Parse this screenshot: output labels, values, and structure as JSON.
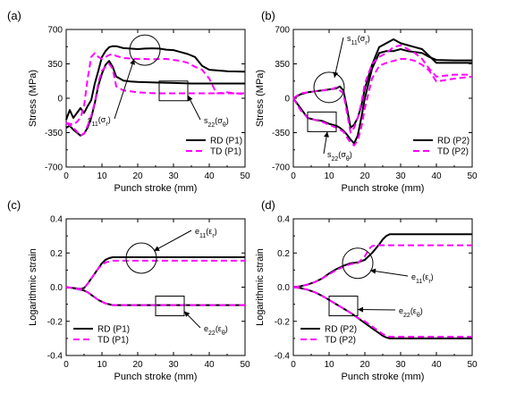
{
  "chart_data": [
    {
      "panel_label": "(a)",
      "type": "line",
      "xlabel": "Punch stroke (mm)",
      "ylabel": "Stress (MPa)",
      "xlim": [
        0,
        50
      ],
      "ylim": [
        -700,
        700
      ],
      "xticks": [
        "0",
        "10",
        "20",
        "30",
        "40",
        "50"
      ],
      "yticks": [
        "-700",
        "-350",
        "0",
        "350",
        "700"
      ],
      "legend_position": "bottom-right",
      "colors": {
        "RD": "#000000",
        "TD": "#ff00ff"
      },
      "annotations": [
        {
          "text": "s",
          "sub": "11",
          "tail": "(σ",
          "tsub": "r",
          "close": ")",
          "shape": "circle",
          "at": [
            22,
            490
          ]
        },
        {
          "text": "s",
          "sub": "22",
          "tail": "(σ",
          "tsub": "θ",
          "close": ")",
          "shape": "box",
          "at": [
            30,
            75
          ]
        }
      ],
      "series": [
        {
          "name": "RD (P1)",
          "style": "solid",
          "x": [
            0,
            1,
            2,
            3,
            4,
            5,
            6,
            7,
            8,
            9,
            10,
            11,
            12,
            13,
            14,
            16,
            18,
            20,
            22,
            24,
            26,
            28,
            30,
            32,
            34,
            36,
            38,
            40,
            45,
            50
          ],
          "y": [
            -220,
            -120,
            -200,
            -150,
            -100,
            -150,
            -80,
            -20,
            150,
            280,
            420,
            480,
            520,
            530,
            530,
            510,
            505,
            500,
            505,
            508,
            505,
            495,
            490,
            470,
            450,
            420,
            330,
            290,
            275,
            270
          ]
        },
        {
          "name": "RD (P1)",
          "style": "solid",
          "x": [
            0,
            1,
            2,
            3,
            4,
            5,
            6,
            7,
            8,
            9,
            10,
            11,
            12,
            13,
            14,
            16,
            18,
            20,
            25,
            30,
            35,
            40,
            45,
            50
          ],
          "y": [
            -300,
            -280,
            -320,
            -350,
            -380,
            -360,
            -300,
            -200,
            -50,
            130,
            250,
            340,
            380,
            320,
            220,
            180,
            170,
            165,
            160,
            155,
            150,
            150,
            150,
            150
          ]
        },
        {
          "name": "TD (P1)",
          "style": "dashed",
          "x": [
            0,
            1,
            2,
            3,
            4,
            5,
            6,
            7,
            8,
            9,
            10,
            11,
            12,
            13,
            14,
            16,
            18,
            20,
            22,
            24,
            26,
            28,
            30,
            32,
            34,
            36,
            38,
            40,
            42,
            45,
            50
          ],
          "y": [
            -250,
            -260,
            -270,
            -240,
            -200,
            -80,
            200,
            420,
            460,
            420,
            400,
            420,
            440,
            450,
            430,
            410,
            405,
            400,
            400,
            395,
            400,
            400,
            390,
            380,
            360,
            320,
            290,
            200,
            50,
            60,
            40
          ]
        },
        {
          "name": "TD (P1)",
          "style": "dashed",
          "x": [
            0,
            2,
            4,
            5,
            6,
            7,
            8,
            9,
            10,
            11,
            12,
            13,
            14,
            16,
            18,
            20,
            25,
            30,
            35,
            40,
            45,
            50
          ],
          "y": [
            -250,
            -300,
            -380,
            -360,
            -280,
            -180,
            -40,
            160,
            280,
            320,
            350,
            300,
            120,
            80,
            70,
            60,
            50,
            50,
            50,
            50,
            50,
            50
          ]
        }
      ]
    },
    {
      "panel_label": "(b)",
      "type": "line",
      "xlabel": "Punch stroke (mm)",
      "ylabel": "Stress (MPa)",
      "xlim": [
        0,
        50
      ],
      "ylim": [
        -700,
        700
      ],
      "xticks": [
        "0",
        "10",
        "20",
        "30",
        "40",
        "50"
      ],
      "yticks": [
        "-700",
        "-350",
        "0",
        "350",
        "700"
      ],
      "legend_position": "bottom-right",
      "colors": {
        "RD": "#000000",
        "TD": "#ff00ff"
      },
      "annotations": [
        {
          "text": "s",
          "sub": "11",
          "tail": "(σ",
          "tsub": "r",
          "close": ")",
          "shape": "circle",
          "at": [
            10,
            110
          ]
        },
        {
          "text": "s",
          "sub": "22",
          "tail": "(σ",
          "tsub": "θ",
          "close": ")",
          "shape": "box",
          "at": [
            8,
            -240
          ]
        }
      ],
      "series": [
        {
          "name": "RD (P2)",
          "style": "solid",
          "x": [
            0,
            2,
            4,
            6,
            8,
            10,
            12,
            13,
            14,
            15,
            16,
            17,
            18,
            19,
            20,
            22,
            24,
            26,
            28,
            30,
            32,
            34,
            36,
            38,
            40,
            45,
            50
          ],
          "y": [
            0,
            40,
            60,
            70,
            80,
            90,
            100,
            120,
            80,
            -100,
            -300,
            -270,
            -200,
            -80,
            100,
            340,
            520,
            560,
            600,
            560,
            540,
            520,
            500,
            430,
            360,
            360,
            360
          ]
        },
        {
          "name": "RD (P2)",
          "style": "solid",
          "x": [
            0,
            2,
            4,
            6,
            8,
            10,
            12,
            13,
            14,
            15,
            16,
            17,
            18,
            19,
            20,
            22,
            24,
            26,
            28,
            30,
            32,
            34,
            36,
            38,
            40,
            45,
            50
          ],
          "y": [
            0,
            -100,
            -200,
            -220,
            -230,
            -260,
            -280,
            -300,
            -330,
            -370,
            -420,
            -460,
            -380,
            -200,
            0,
            300,
            460,
            480,
            480,
            500,
            480,
            470,
            460,
            420,
            390,
            385,
            385
          ]
        },
        {
          "name": "TD (P2)",
          "style": "dashed",
          "x": [
            0,
            2,
            4,
            6,
            8,
            10,
            12,
            14,
            15,
            16,
            17,
            18,
            19,
            20,
            22,
            24,
            26,
            28,
            30,
            32,
            34,
            36,
            38,
            40,
            45,
            50
          ],
          "y": [
            0,
            50,
            60,
            70,
            80,
            85,
            110,
            50,
            -150,
            -350,
            -300,
            -200,
            -50,
            150,
            350,
            420,
            460,
            520,
            540,
            500,
            460,
            400,
            300,
            220,
            240,
            240
          ]
        },
        {
          "name": "TD (P2)",
          "style": "dashed",
          "x": [
            0,
            2,
            4,
            6,
            8,
            10,
            12,
            14,
            15,
            16,
            17,
            18,
            19,
            20,
            22,
            24,
            26,
            28,
            30,
            32,
            34,
            36,
            38,
            40,
            45,
            50
          ],
          "y": [
            0,
            -120,
            -200,
            -220,
            -240,
            -270,
            -300,
            -340,
            -400,
            -450,
            -480,
            -430,
            -300,
            -100,
            200,
            330,
            360,
            380,
            400,
            400,
            380,
            340,
            280,
            170,
            200,
            220
          ]
        }
      ]
    },
    {
      "panel_label": "(c)",
      "type": "line",
      "xlabel": "Punch stroke (mm)",
      "ylabel": "Logarithmic strain",
      "xlim": [
        0,
        50
      ],
      "ylim": [
        -0.4,
        0.4
      ],
      "xticks": [
        "0",
        "10",
        "20",
        "30",
        "40",
        "50"
      ],
      "yticks": [
        "-0.4",
        "-0.2",
        "0.0",
        "0.2",
        "0.4"
      ],
      "legend_position": "bottom-left",
      "colors": {
        "RD": "#000000",
        "TD": "#ff00ff"
      },
      "annotations": [
        {
          "text": "e",
          "sub": "11",
          "tail": "(ε",
          "tsub": "r",
          "close": ")",
          "shape": "circle",
          "at": [
            21,
            0.17
          ]
        },
        {
          "text": "e",
          "sub": "22",
          "tail": "(ε",
          "tsub": "θ",
          "close": ")",
          "shape": "box",
          "at": [
            29,
            -0.11
          ]
        }
      ],
      "series": [
        {
          "name": "RD (P1)",
          "style": "solid",
          "x": [
            0,
            2,
            4,
            5,
            6,
            7,
            8,
            9,
            10,
            11,
            12,
            13,
            14,
            15,
            20,
            30,
            40,
            50
          ],
          "y": [
            0,
            -0.005,
            -0.01,
            -0.005,
            0.02,
            0.05,
            0.08,
            0.11,
            0.14,
            0.16,
            0.17,
            0.175,
            0.175,
            0.175,
            0.175,
            0.175,
            0.175,
            0.175
          ]
        },
        {
          "name": "TD (P1)",
          "style": "dashed",
          "x": [
            0,
            2,
            4,
            5,
            6,
            7,
            8,
            9,
            10,
            11,
            12,
            13,
            14,
            15,
            20,
            30,
            40,
            50
          ],
          "y": [
            0,
            -0.005,
            -0.01,
            -0.005,
            0.02,
            0.05,
            0.08,
            0.11,
            0.13,
            0.145,
            0.15,
            0.155,
            0.155,
            0.155,
            0.155,
            0.155,
            0.155,
            0.155
          ]
        },
        {
          "name": "RD (P1)",
          "style": "solid",
          "x": [
            0,
            2,
            4,
            5,
            6,
            7,
            8,
            9,
            10,
            11,
            12,
            13,
            14,
            15,
            20,
            30,
            40,
            50
          ],
          "y": [
            0,
            -0.005,
            -0.015,
            -0.02,
            -0.03,
            -0.045,
            -0.06,
            -0.075,
            -0.085,
            -0.095,
            -0.1,
            -0.105,
            -0.105,
            -0.105,
            -0.105,
            -0.105,
            -0.105,
            -0.105
          ]
        },
        {
          "name": "TD (P1)",
          "style": "dashed",
          "x": [
            0,
            2,
            4,
            5,
            6,
            7,
            8,
            9,
            10,
            11,
            12,
            13,
            14,
            15,
            20,
            30,
            40,
            50
          ],
          "y": [
            0,
            -0.005,
            -0.015,
            -0.02,
            -0.03,
            -0.045,
            -0.06,
            -0.075,
            -0.085,
            -0.095,
            -0.1,
            -0.105,
            -0.105,
            -0.105,
            -0.105,
            -0.105,
            -0.105,
            -0.105
          ]
        }
      ]
    },
    {
      "panel_label": "(d)",
      "type": "line",
      "xlabel": "Punch stroke (mm)",
      "ylabel": "Logarithmic strain",
      "xlim": [
        0,
        50
      ],
      "ylim": [
        -0.4,
        0.4
      ],
      "xticks": [
        "0",
        "10",
        "20",
        "30",
        "40",
        "50"
      ],
      "yticks": [
        "-0.4",
        "-0.2",
        "0.0",
        "0.2",
        "0.4"
      ],
      "legend_position": "bottom-left",
      "colors": {
        "RD": "#000000",
        "TD": "#ff00ff"
      },
      "annotations": [
        {
          "text": "e",
          "sub": "11",
          "tail": "(ε",
          "tsub": "r",
          "close": ")",
          "shape": "circle",
          "at": [
            18,
            0.14
          ]
        },
        {
          "text": "e",
          "sub": "22",
          "tail": "(ε",
          "tsub": "θ",
          "close": ")",
          "shape": "box",
          "at": [
            14,
            -0.11
          ]
        }
      ],
      "series": [
        {
          "name": "RD (P2)",
          "style": "solid",
          "x": [
            0,
            2,
            4,
            6,
            8,
            10,
            12,
            14,
            16,
            18,
            20,
            22,
            24,
            25,
            26,
            27,
            30,
            40,
            50
          ],
          "y": [
            0,
            0.005,
            0.015,
            0.03,
            0.05,
            0.08,
            0.105,
            0.125,
            0.14,
            0.145,
            0.16,
            0.2,
            0.25,
            0.28,
            0.3,
            0.31,
            0.31,
            0.31,
            0.31
          ]
        },
        {
          "name": "TD (P2)",
          "style": "dashed",
          "x": [
            0,
            2,
            4,
            6,
            8,
            10,
            12,
            14,
            16,
            18,
            20,
            21,
            22,
            23,
            25,
            30,
            40,
            50
          ],
          "y": [
            0,
            0.005,
            0.015,
            0.03,
            0.05,
            0.075,
            0.1,
            0.12,
            0.135,
            0.14,
            0.18,
            0.22,
            0.24,
            0.245,
            0.245,
            0.245,
            0.245,
            0.245
          ]
        },
        {
          "name": "RD (P2)",
          "style": "solid",
          "x": [
            0,
            2,
            4,
            6,
            8,
            10,
            12,
            14,
            16,
            18,
            20,
            22,
            24,
            25,
            26,
            27,
            30,
            40,
            50
          ],
          "y": [
            0,
            -0.005,
            -0.015,
            -0.03,
            -0.05,
            -0.075,
            -0.1,
            -0.125,
            -0.15,
            -0.18,
            -0.21,
            -0.24,
            -0.27,
            -0.285,
            -0.295,
            -0.3,
            -0.3,
            -0.3,
            -0.3
          ]
        },
        {
          "name": "TD (P2)",
          "style": "dashed",
          "x": [
            0,
            2,
            4,
            6,
            8,
            10,
            12,
            14,
            16,
            18,
            20,
            22,
            24,
            25,
            26,
            27,
            30,
            40,
            50
          ],
          "y": [
            0,
            -0.005,
            -0.015,
            -0.03,
            -0.05,
            -0.075,
            -0.1,
            -0.125,
            -0.15,
            -0.18,
            -0.2,
            -0.23,
            -0.26,
            -0.275,
            -0.285,
            -0.29,
            -0.29,
            -0.29,
            -0.29
          ]
        }
      ]
    }
  ]
}
